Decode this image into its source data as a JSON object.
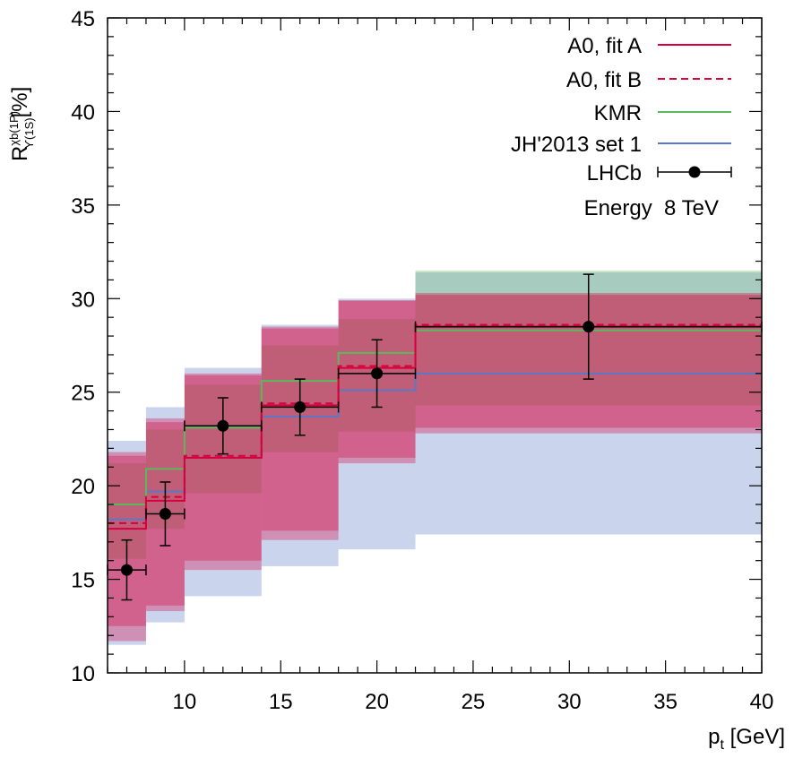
{
  "chart_data": {
    "type": "step",
    "title": "",
    "xlabel": {
      "base": "p",
      "sub": "t",
      "unit": " [GeV]"
    },
    "ylabel": {
      "base": "R",
      "sup": "χb(1P)",
      "sub": "ϒ(1S)",
      "unit": "[%]"
    },
    "xlim": [
      6,
      40
    ],
    "ylim": [
      10,
      45
    ],
    "xticks": [
      10,
      15,
      20,
      25,
      30,
      35,
      40
    ],
    "yticks": [
      10,
      15,
      20,
      25,
      30,
      35,
      40,
      45
    ],
    "bin_edges": [
      6,
      8,
      10,
      14,
      18,
      22,
      40
    ],
    "annotation": "Energy  8 TeV",
    "series": [
      {
        "name": "A0, fit A",
        "color": "#d6003c",
        "style": "solid",
        "values": [
          17.7,
          19.2,
          21.5,
          24.3,
          26.3,
          28.5
        ],
        "band_lower": [
          11.7,
          13.3,
          15.5,
          17.1,
          21.2,
          22.8
        ],
        "band_upper": [
          21.6,
          23.4,
          25.9,
          28.4,
          29.9,
          30.2
        ]
      },
      {
        "name": "A0, fit B",
        "color": "#d6003c",
        "style": "dashed",
        "values": [
          18.0,
          19.4,
          21.6,
          24.4,
          26.4,
          28.6
        ],
        "band_lower": [
          12.5,
          13.6,
          16.0,
          17.6,
          21.5,
          23.1
        ],
        "band_upper": [
          21.8,
          23.6,
          26.0,
          28.5,
          29.9,
          30.3
        ]
      },
      {
        "name": "KMR",
        "color": "#5cb85c",
        "style": "solid",
        "values": [
          19.0,
          20.9,
          23.1,
          25.6,
          27.1,
          28.3
        ],
        "band_lower": [
          16.1,
          17.7,
          19.6,
          21.8,
          22.9,
          24.3
        ],
        "band_upper": [
          21.2,
          23.0,
          25.4,
          27.5,
          28.9,
          31.5
        ]
      },
      {
        "name": "JH'2013 set 1",
        "color": "#5b78c8",
        "style": "solid",
        "values": [
          18.2,
          19.7,
          21.5,
          23.7,
          25.1,
          26.0
        ],
        "band_lower": [
          11.5,
          12.7,
          14.1,
          15.7,
          16.6,
          17.4
        ],
        "band_upper": [
          22.4,
          24.2,
          26.3,
          28.6,
          30.0,
          31.4
        ]
      }
    ],
    "points": {
      "name": "LHCb",
      "color": "#000000",
      "x": [
        7,
        9,
        12,
        16,
        20,
        31
      ],
      "y": [
        15.5,
        18.5,
        23.2,
        24.2,
        26.0,
        28.5
      ],
      "xerr_low": [
        1,
        1,
        2,
        2,
        2,
        9
      ],
      "xerr_high": [
        1,
        1,
        2,
        2,
        2,
        9
      ],
      "yerr_low": [
        1.6,
        1.7,
        1.5,
        1.5,
        1.8,
        2.8
      ],
      "yerr_high": [
        1.6,
        1.7,
        1.5,
        1.5,
        1.8,
        2.8
      ]
    }
  }
}
